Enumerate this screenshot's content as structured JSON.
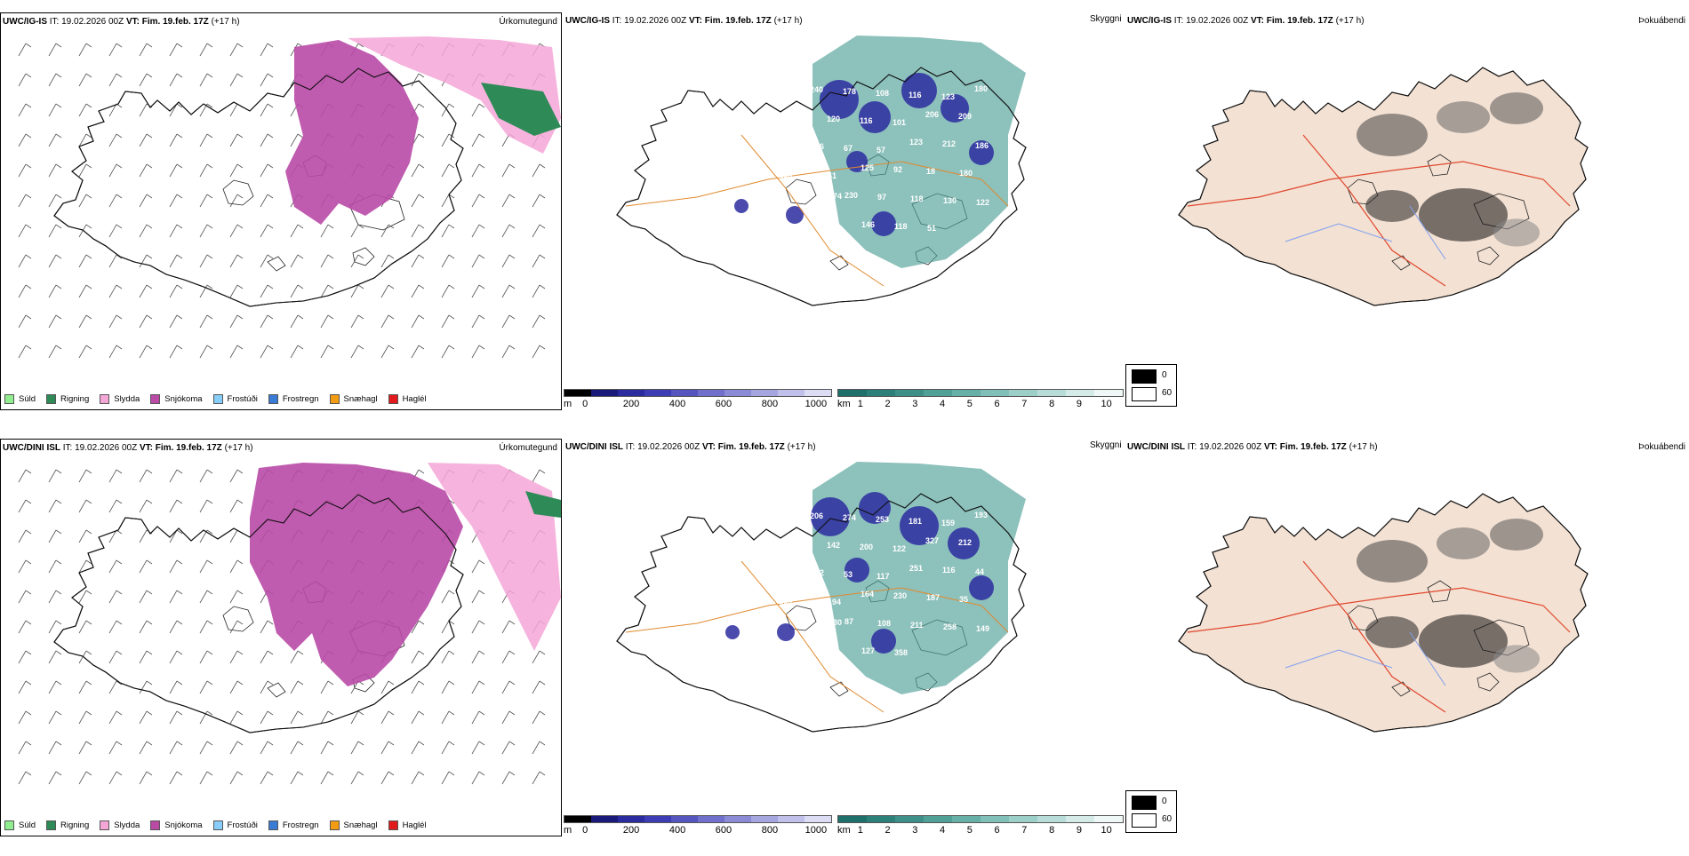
{
  "rows": [
    {
      "model": "UWC/IG-IS",
      "it_label": "IT: 19.02.2026 00Z",
      "vt_label": "VT: Fim. 19.feb. 17Z",
      "lead": "(+17 h)"
    },
    {
      "model": "UWC/DINI ISL",
      "it_label": "IT: 19.02.2026 00Z",
      "vt_label": "VT: Fim. 19.feb. 17Z",
      "lead": "(+17 h)"
    }
  ],
  "panel_titles": {
    "precip": "Úrkomutegund",
    "cloud": "Skyggni",
    "dew": "Þokuábendi"
  },
  "precip_legend": [
    {
      "label": "Súld",
      "color": "#90ee90"
    },
    {
      "label": "Rigning",
      "color": "#2e8b57"
    },
    {
      "label": "Slydda",
      "color": "#f4a6d7"
    },
    {
      "label": "Snjókoma",
      "color": "#b94aa6"
    },
    {
      "label": "Frostúði",
      "color": "#87cefa"
    },
    {
      "label": "Frostregn",
      "color": "#3a7bd5"
    },
    {
      "label": "Snæhagl",
      "color": "#f39c12"
    },
    {
      "label": "Haglél",
      "color": "#e31a1c"
    }
  ],
  "cloudbase_scale": {
    "unit": "m",
    "ticks": [
      "0",
      "200",
      "400",
      "600",
      "800",
      "1000"
    ],
    "colors": [
      "#000000",
      "#1a1a7a",
      "#2b2ba0",
      "#3c3cb4",
      "#5555c0",
      "#7070cc",
      "#8a8ad6",
      "#a5a5e0",
      "#c0c0ea",
      "#dcdcf5"
    ]
  },
  "visibility_scale": {
    "unit": "km",
    "ticks": [
      "1",
      "2",
      "3",
      "4",
      "5",
      "6",
      "7",
      "8",
      "9",
      "10"
    ],
    "colors": [
      "#1f6f6a",
      "#2d7f79",
      "#3d8f88",
      "#50a098",
      "#66b0a8",
      "#80c0b8",
      "#9ccfc8",
      "#b8ddd8",
      "#d4ebe8",
      "#f0f8f7"
    ]
  },
  "fog_legend": [
    {
      "label": "0",
      "color": "#000000"
    },
    {
      "label": "60",
      "color": "#ffffff"
    }
  ],
  "cloud_labels": [
    [
      "235",
      "240",
      "178",
      "108",
      "116",
      "123",
      "180",
      "328",
      "120",
      "116",
      "101",
      "206",
      "209",
      "224",
      "216",
      "67",
      "57",
      "123",
      "212",
      "186",
      "23",
      "61",
      "125",
      "92",
      "18",
      "180",
      "135",
      "53",
      "230",
      "97",
      "118",
      "130",
      "122",
      "188",
      "274",
      "146",
      "118",
      "51"
    ],
    [
      "227",
      "206",
      "274",
      "253",
      "181",
      "159",
      "193",
      "209",
      "142",
      "200",
      "122",
      "327",
      "212",
      "82",
      "222",
      "53",
      "117",
      "251",
      "116",
      "44",
      "66",
      "194",
      "164",
      "230",
      "187",
      "35",
      "205",
      "150",
      "87",
      "108",
      "211",
      "258",
      "149",
      "153",
      "230",
      "127",
      "358"
    ]
  ]
}
